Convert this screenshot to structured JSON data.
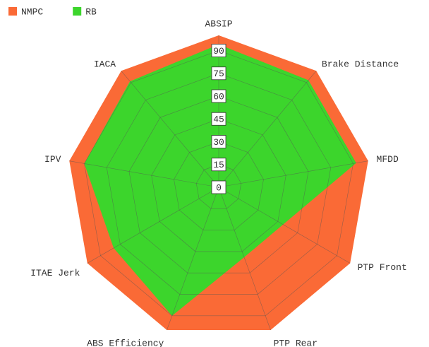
{
  "chart_data": {
    "type": "radar",
    "categories": [
      "ABSIP",
      "Brake Distance",
      "MFDD",
      "PTP Front",
      "PTP Rear",
      "ABS Efficiency",
      "ITAE Jerk",
      "IPV",
      "IACA"
    ],
    "series": [
      {
        "name": "NMPC",
        "color": "#fa6a36",
        "values": [
          100,
          100,
          100,
          100,
          100,
          100,
          100,
          100,
          100
        ]
      },
      {
        "name": "RB",
        "color": "#3cd52c",
        "values": [
          94,
          92,
          92,
          49,
          49,
          90,
          80,
          90,
          91
        ]
      }
    ],
    "ylim": [
      0,
      100
    ],
    "yticks": [
      0,
      15,
      30,
      45,
      60,
      75,
      90
    ],
    "grid": true,
    "legend": "top-left"
  }
}
